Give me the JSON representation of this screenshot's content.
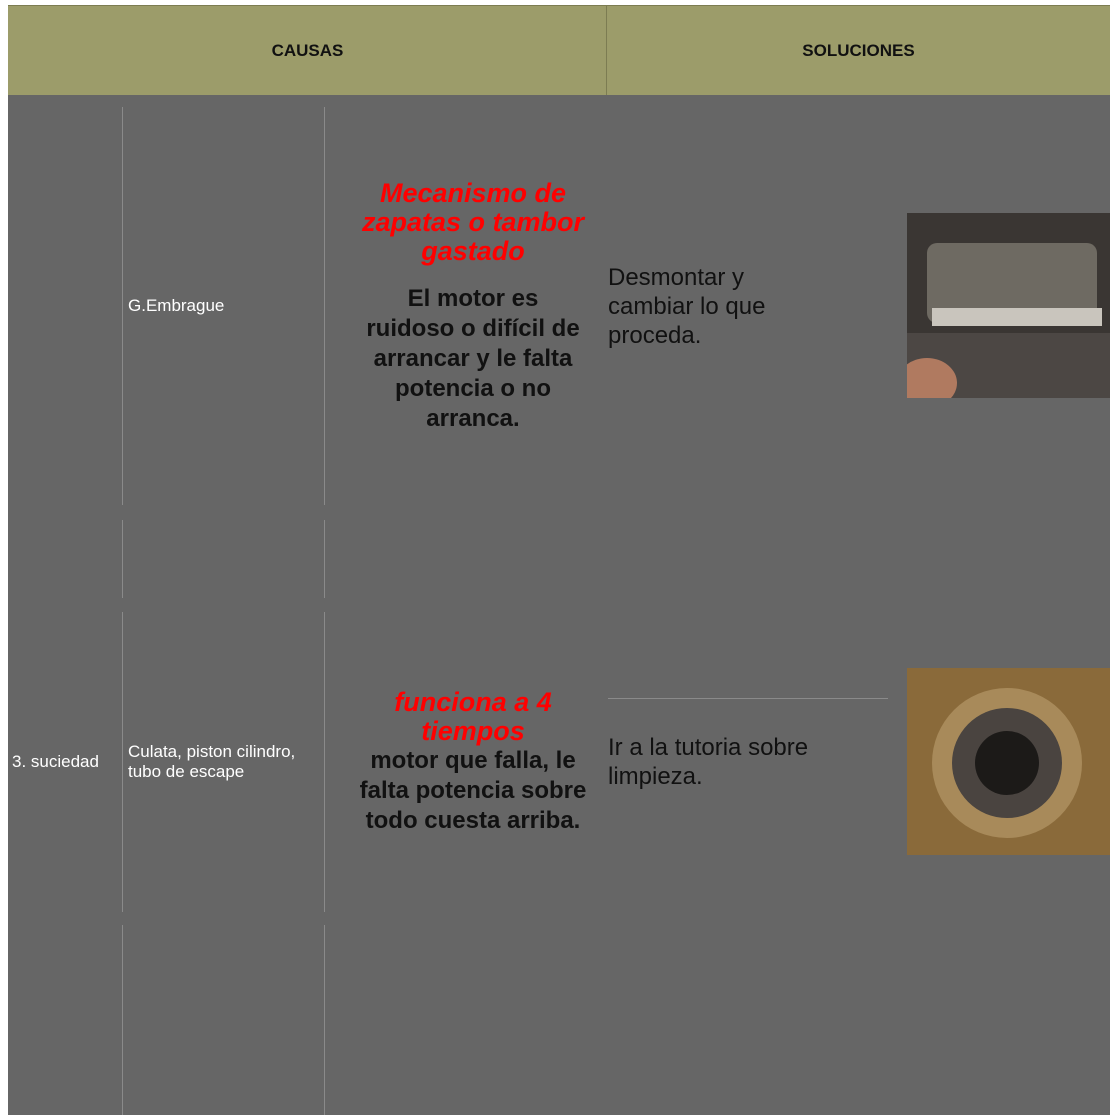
{
  "header": {
    "causas": "CAUSAS",
    "soluciones": "SOLUCIONES"
  },
  "rows": [
    {
      "part": "G.Embrague",
      "title": "Mecanismo de zapatas o tambor gastado",
      "symptom": "El motor es ruidoso o difícil de arrancar y le falta potencia o no arranca.",
      "solution": "Desmontar y cambiar lo que proceda."
    },
    {
      "number": "3. suciedad",
      "part": "Culata, piston cilindro, tubo de escape",
      "title": "funciona a 4 tiempos",
      "symptom": "motor que falla, le falta potencia sobre todo cuesta arriba.",
      "solution": "Ir a la tutoria sobre limpieza."
    }
  ]
}
